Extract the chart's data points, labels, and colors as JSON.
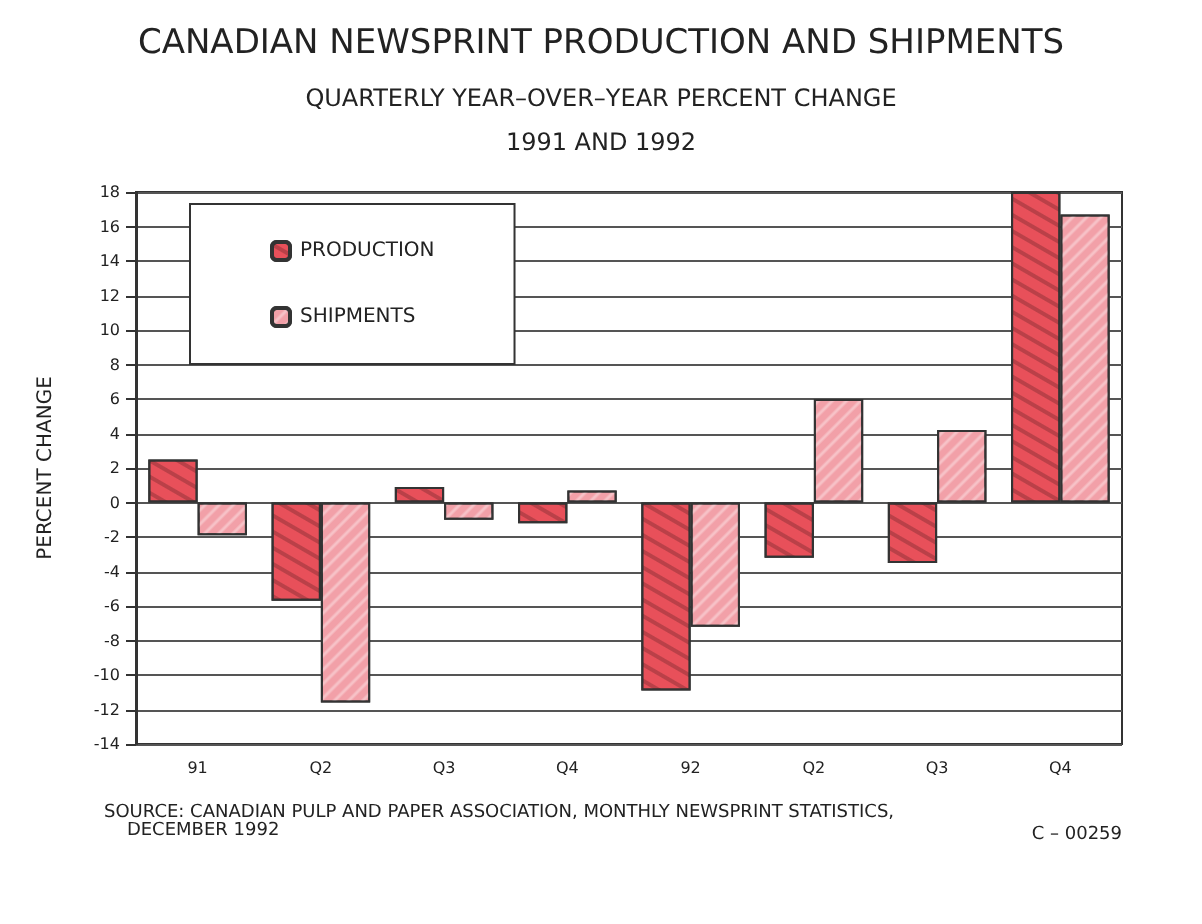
{
  "chart_data": {
    "type": "bar",
    "title": "CANADIAN NEWSPRINT PRODUCTION AND SHIPMENTS",
    "subtitle": "QUARTERLY YEAR–OVER–YEAR PERCENT CHANGE\n1991 AND 1992",
    "ylabel": "PERCENT CHANGE",
    "categories": [
      "91",
      "Q2",
      "Q3",
      "Q4",
      "92",
      "Q2",
      "Q3",
      "Q4"
    ],
    "series": [
      {
        "name": "PRODUCTION",
        "color": "#e8505a",
        "values": [
          2.5,
          -5.7,
          0.9,
          -1.2,
          -10.9,
          -3.2,
          -3.5,
          18
        ]
      },
      {
        "name": "SHIPMENTS",
        "color": "#f2a0a8",
        "values": [
          -1.9,
          -11.6,
          -1.0,
          0.7,
          -7.2,
          6.0,
          4.2,
          16.7
        ]
      }
    ],
    "ylim": [
      -14,
      18
    ],
    "yticks": [
      -14,
      -12,
      -10,
      -8,
      -6,
      -4,
      -2,
      0,
      2,
      4,
      6,
      8,
      10,
      12,
      14,
      16,
      18
    ],
    "grid": "y",
    "legend": "top left",
    "annotations": [
      "SOURCE: CANADIAN PULP AND PAPER ASSOCIATION, MONTHLY NEWSPRINT STATISTICS,\n    DECEMBER 1992",
      "C – 00259"
    ]
  }
}
